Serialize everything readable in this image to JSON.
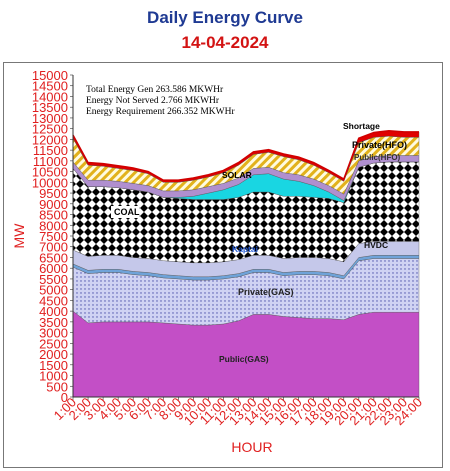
{
  "chart_data": {
    "type": "area",
    "title": "Daily Energy Curve",
    "subtitle": "14-04-2024",
    "xlabel": "HOUR",
    "ylabel": "MW",
    "ylim": [
      0,
      15000
    ],
    "categories": [
      "1:00",
      "2:00",
      "3:00",
      "4:00",
      "5:00",
      "6:00",
      "7:00",
      "8:00",
      "9:00",
      "10:00",
      "11:00",
      "12:00",
      "13:00",
      "14:00",
      "15:00",
      "16:00",
      "17:00",
      "18:00",
      "19:00",
      "20:00",
      "21:00",
      "22:00",
      "23:00",
      "24:00"
    ],
    "yticks": [
      "0",
      "500",
      "1000",
      "1500",
      "2000",
      "2500",
      "3000",
      "3500",
      "4000",
      "4500",
      "5000",
      "5500",
      "6000",
      "6500",
      "7000",
      "7500",
      "8000",
      "8500",
      "9000",
      "9500",
      "10000",
      "10500",
      "11000",
      "11500",
      "12000",
      "12500",
      "13000",
      "13500",
      "14000",
      "14500",
      "15000"
    ],
    "series": [
      {
        "name": "Public(GAS)",
        "fill": "#c34fc6",
        "pattern": "solid",
        "values": [
          4000,
          3450,
          3500,
          3500,
          3500,
          3500,
          3450,
          3400,
          3350,
          3350,
          3400,
          3550,
          3850,
          3850,
          3750,
          3700,
          3650,
          3650,
          3600,
          3850,
          3950,
          3950,
          3950,
          3950
        ]
      },
      {
        "name": "Private(GAS)",
        "fill": "#c8ccf0",
        "pattern": "dots",
        "values": [
          2050,
          2300,
          2300,
          2300,
          2200,
          2150,
          2100,
          2100,
          2100,
          2100,
          2100,
          2050,
          1950,
          1950,
          1900,
          2000,
          2050,
          2000,
          1900,
          2500,
          2500,
          2500,
          2500,
          2500
        ]
      },
      {
        "name": "Kaptai",
        "fill": "#6fa3d9",
        "pattern": "solid",
        "values": [
          150,
          150,
          150,
          150,
          150,
          150,
          150,
          150,
          150,
          150,
          150,
          150,
          150,
          150,
          150,
          150,
          150,
          150,
          150,
          150,
          150,
          150,
          150,
          150
        ]
      },
      {
        "name": "HVDC",
        "fill": "#c5c8ea",
        "pattern": "solid",
        "values": [
          650,
          650,
          650,
          650,
          650,
          650,
          650,
          650,
          650,
          650,
          650,
          650,
          650,
          650,
          650,
          650,
          650,
          650,
          650,
          650,
          650,
          650,
          650,
          650
        ]
      },
      {
        "name": "COAL",
        "fill": "#000000",
        "pattern": "checker",
        "values": [
          3800,
          3250,
          3200,
          3150,
          3150,
          3100,
          2950,
          2950,
          2950,
          2950,
          2900,
          2900,
          2950,
          2950,
          2900,
          2850,
          2800,
          2800,
          2750,
          3550,
          3650,
          3700,
          3700,
          3700
        ]
      },
      {
        "name": "SOLAR",
        "fill": "#19d6e2",
        "pattern": "solid",
        "values": [
          0,
          0,
          0,
          0,
          0,
          0,
          0,
          50,
          150,
          300,
          450,
          600,
          800,
          850,
          800,
          700,
          550,
          300,
          100,
          0,
          0,
          0,
          0,
          0
        ]
      },
      {
        "name": "Public(HFO)",
        "fill": "#b08fcf",
        "pattern": "solid",
        "values": [
          300,
          300,
          300,
          300,
          300,
          300,
          300,
          300,
          300,
          300,
          300,
          300,
          300,
          300,
          300,
          300,
          300,
          300,
          300,
          300,
          300,
          300,
          300,
          300
        ]
      },
      {
        "name": "Private(HFO)",
        "fill": "#f2cc2e",
        "pattern": "hatch",
        "values": [
          1100,
          700,
          650,
          600,
          600,
          550,
          400,
          400,
          450,
          450,
          500,
          600,
          650,
          700,
          750,
          700,
          650,
          600,
          600,
          850,
          900,
          900,
          850,
          850
        ]
      },
      {
        "name": "Shortage",
        "fill": "#e00000",
        "pattern": "solid",
        "values": [
          150,
          120,
          120,
          120,
          120,
          100,
          100,
          100,
          100,
          100,
          100,
          120,
          120,
          120,
          120,
          120,
          120,
          100,
          100,
          200,
          220,
          250,
          250,
          250
        ]
      }
    ],
    "annotations": [
      "Total Energy Gen 263.586 MKWHr",
      "Energy Not Served   2.766 MKWHr",
      "Energy Requirement     266.352 MKWHr"
    ],
    "grid": false,
    "legend": "inline labels"
  }
}
